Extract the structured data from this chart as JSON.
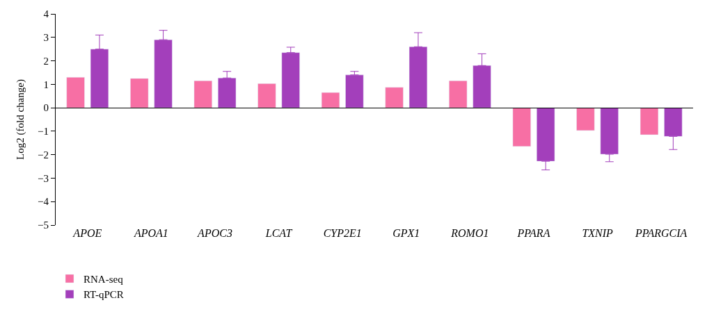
{
  "chart_data": {
    "type": "bar",
    "ylabel": "Log2 (fold change)",
    "categories": [
      "APOE",
      "APOA1",
      "APOC3",
      "LCAT",
      "CYP2E1",
      "GPX1",
      "ROMO1",
      "PPARA",
      "TXNIP",
      "PPARGCIA"
    ],
    "series": [
      {
        "name": "RNA-seq",
        "color": "#f76fa4",
        "values": [
          1.3,
          1.25,
          1.15,
          1.03,
          0.65,
          0.87,
          1.15,
          -1.65,
          -0.97,
          -1.15
        ]
      },
      {
        "name": "RT-qPCR",
        "color": "#a33fbb",
        "values": [
          2.5,
          2.9,
          1.27,
          2.35,
          1.4,
          2.6,
          1.8,
          -2.28,
          -1.98,
          -1.22
        ],
        "errors": [
          [
            2.5,
            3.1
          ],
          [
            2.9,
            3.3
          ],
          [
            1.27,
            1.55
          ],
          [
            2.35,
            2.58
          ],
          [
            1.4,
            1.55
          ],
          [
            2.6,
            3.2
          ],
          [
            1.8,
            2.3
          ],
          [
            -2.65,
            -2.28
          ],
          [
            -2.3,
            -1.98
          ],
          [
            -1.78,
            -1.22
          ]
        ]
      }
    ],
    "ylim": [
      -5,
      4
    ],
    "yticks": [
      -5,
      -4,
      -3,
      -2,
      -1,
      0,
      1,
      2,
      3,
      4
    ],
    "legend": "bottom left"
  }
}
